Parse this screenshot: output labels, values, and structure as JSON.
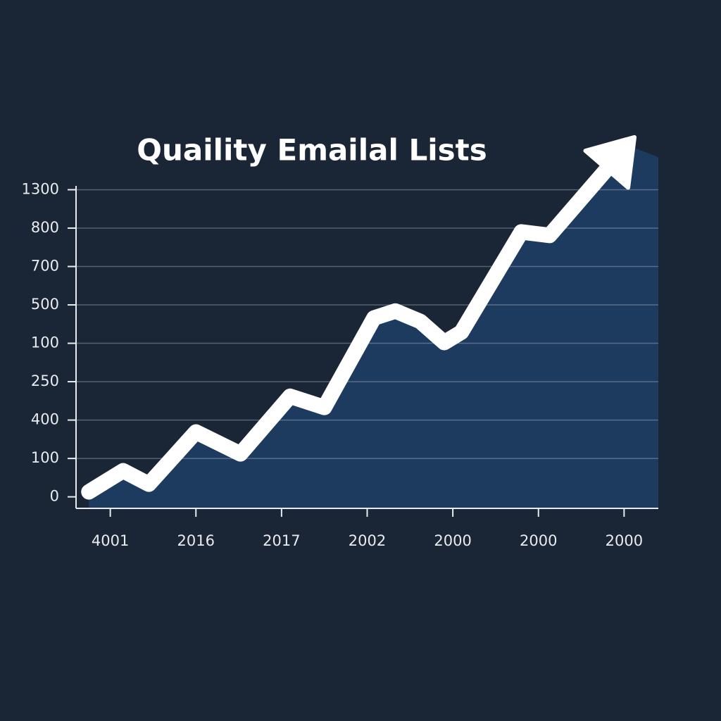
{
  "chart_data": {
    "type": "area",
    "title": "Quaility Emailal Lists",
    "x": [
      -0.25,
      0.15,
      0.45,
      1.0,
      1.52,
      2.1,
      2.5,
      3.08,
      3.33,
      3.62,
      3.9,
      4.1,
      4.8,
      5.13,
      6.04
    ],
    "series": [
      {
        "name": null,
        "color": "#ffffff",
        "fill": "#1d3a5f",
        "values": [
          0.13,
          0.68,
          0.33,
          1.69,
          1.12,
          2.62,
          2.33,
          4.66,
          4.84,
          4.57,
          4.02,
          4.29,
          6.9,
          6.81,
          9.16
        ]
      }
    ],
    "xlim": [
      -0.4,
      6.4
    ],
    "xticks": [
      {
        "value": 0,
        "label": "4001"
      },
      {
        "value": 1,
        "label": "2016"
      },
      {
        "value": 2,
        "label": "2017"
      },
      {
        "value": 3,
        "label": "2002"
      },
      {
        "value": 4,
        "label": "2000"
      },
      {
        "value": 5,
        "label": "2000"
      },
      {
        "value": 6,
        "label": "2000"
      }
    ],
    "ylim": [
      -0.3,
      8.1
    ],
    "yticks": [
      {
        "value": 0,
        "label": "0"
      },
      {
        "value": 1,
        "label": "100"
      },
      {
        "value": 2,
        "label": "400"
      },
      {
        "value": 3,
        "label": "250"
      },
      {
        "value": 4,
        "label": "100"
      },
      {
        "value": 5,
        "label": "500"
      },
      {
        "value": 6,
        "label": "700"
      },
      {
        "value": 7,
        "label": "800"
      },
      {
        "value": 8,
        "label": "1300"
      }
    ],
    "grid": true
  }
}
